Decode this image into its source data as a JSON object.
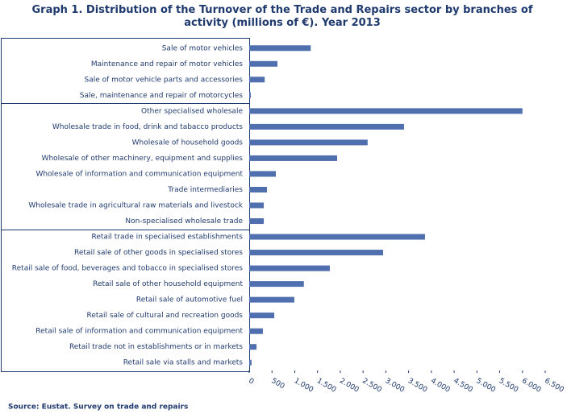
{
  "chart_data": {
    "type": "barh",
    "title": "Graph 1. Distribution of the Turnover of the Trade and Repairs sector by branches of activity (millions of €). Year 2013",
    "source": "Source: Eustat. Survey on trade and repairs",
    "categories": [
      "Sale of motor vehicles",
      "Maintenance and repair of motor vehicles",
      "Sale of motor vehicle parts and accessories",
      "Sale, maintenance and repair of motorcycles",
      "Other specialised wholesale",
      "Wholesale trade in food, drink and tabacco products",
      "Wholesale of household goods",
      "Wholesale of other machinery, equipment and supplies",
      "Wholesale of information and communication equipment",
      "Trade intermediaries",
      "Wholesale trade in agricultural raw materials and livestock",
      "Non-specialised wholesale trade",
      "Retail trade in specialised establishments",
      "Retail sale of other goods in specialised stores",
      "Retail sale of food, beverages and tobacco in specialised stores",
      "Retail sale of other household equipment",
      "Retail sale of automotive fuel",
      "Retail sale of cultural and recreation goods",
      "Retail sale of information and communication equipment",
      "Retail trade not in establishments or in markets",
      "Retail sale via stalls and markets"
    ],
    "values": [
      1350,
      620,
      340,
      35,
      6000,
      3400,
      2600,
      1930,
      585,
      390,
      320,
      320,
      3860,
      2940,
      1770,
      1200,
      990,
      550,
      300,
      160,
      50
    ],
    "color": "#4f6fae",
    "xlim": [
      0,
      6500
    ],
    "xticks": [
      0,
      500,
      {
        "value": 1000,
        "label": "1.000"
      },
      {
        "value": 1500,
        "label": "1.500"
      },
      {
        "value": 2000,
        "label": "2.000"
      },
      {
        "value": 2500,
        "label": "2.500"
      },
      {
        "value": 3000,
        "label": "3.000"
      },
      {
        "value": 3500,
        "label": "3.500"
      },
      {
        "value": 4000,
        "label": "4.000"
      },
      {
        "value": 4500,
        "label": "4.500"
      },
      {
        "value": 5000,
        "label": "5.000"
      },
      {
        "value": 5500,
        "label": "5.500"
      },
      {
        "value": 6000,
        "label": "6.000"
      },
      {
        "value": 6500,
        "label": "6.500"
      }
    ]
  }
}
